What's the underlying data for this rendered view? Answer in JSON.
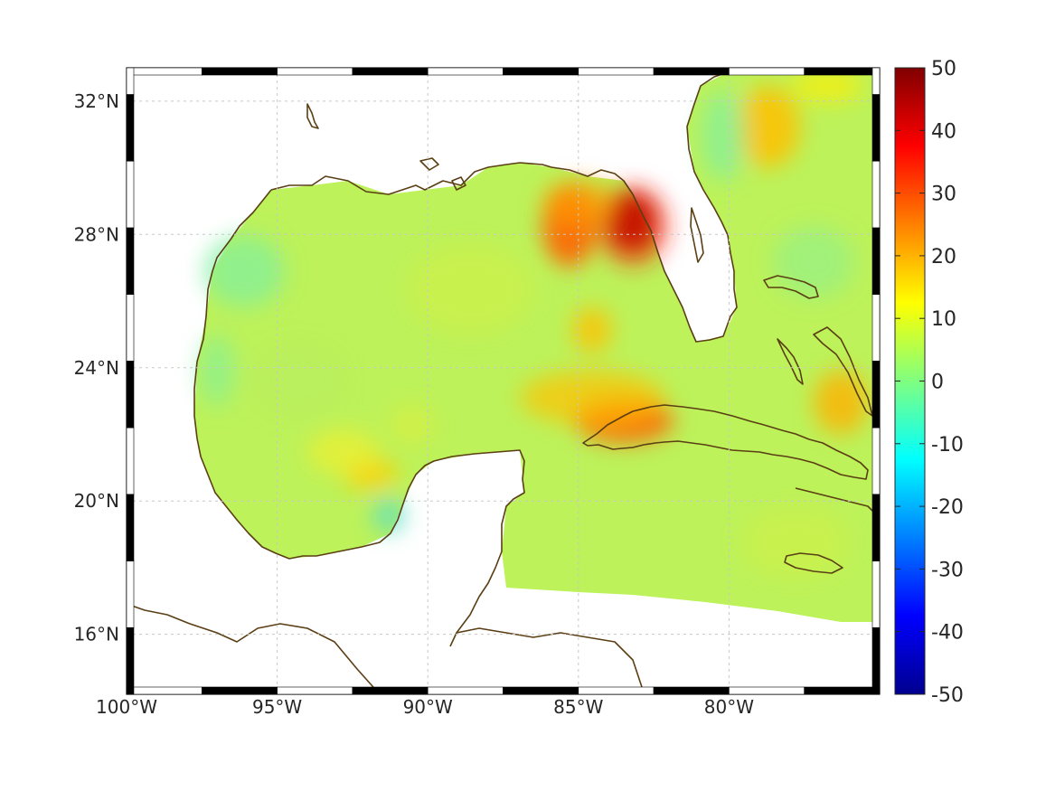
{
  "map": {
    "type": "heatmap",
    "projection": "geographic",
    "lon_range": [
      -100,
      -75
    ],
    "lat_range": [
      14.2,
      33
    ],
    "lon_ticks": [
      {
        "value": -100,
        "label": "100°W"
      },
      {
        "value": -95,
        "label": "95°W"
      },
      {
        "value": -90,
        "label": "90°W"
      },
      {
        "value": -85,
        "label": "85°W"
      },
      {
        "value": -80,
        "label": "80°W"
      }
    ],
    "lat_ticks": [
      {
        "value": 32,
        "label": "32°N"
      },
      {
        "value": 28,
        "label": "28°N"
      },
      {
        "value": 24,
        "label": "24°N"
      },
      {
        "value": 20,
        "label": "20°N"
      },
      {
        "value": 16,
        "label": "16°N"
      }
    ],
    "grid": "on (dotted)",
    "colormap": "jet",
    "value_range": [
      -50,
      50
    ],
    "colors": {
      "coastline": "#5a3e14",
      "background_field": "#bdf25a"
    },
    "hotspots": [
      {
        "region": "Big Bend, Florida (~83.5°W, 28.5°N)",
        "value": 50
      },
      {
        "region": "NE Gulf (~85°W, 28°N)",
        "value": 30
      },
      {
        "region": "North of Cuba (~83°W, 22.8°N)",
        "value": 30
      }
    ]
  },
  "colorbar": {
    "ticks": [
      {
        "value": 50,
        "label": "50"
      },
      {
        "value": 40,
        "label": "40"
      },
      {
        "value": 30,
        "label": "30"
      },
      {
        "value": 20,
        "label": "20"
      },
      {
        "value": 10,
        "label": "10"
      },
      {
        "value": 0,
        "label": "0"
      },
      {
        "value": -10,
        "label": "-10"
      },
      {
        "value": -20,
        "label": "-20"
      },
      {
        "value": -30,
        "label": "-30"
      },
      {
        "value": -40,
        "label": "-40"
      },
      {
        "value": -50,
        "label": "-50"
      }
    ],
    "colors": [
      "#00008f",
      "#0000ff",
      "#0080ff",
      "#00ffff",
      "#80ff80",
      "#ffff00",
      "#ff8000",
      "#ff0000",
      "#800000"
    ]
  }
}
